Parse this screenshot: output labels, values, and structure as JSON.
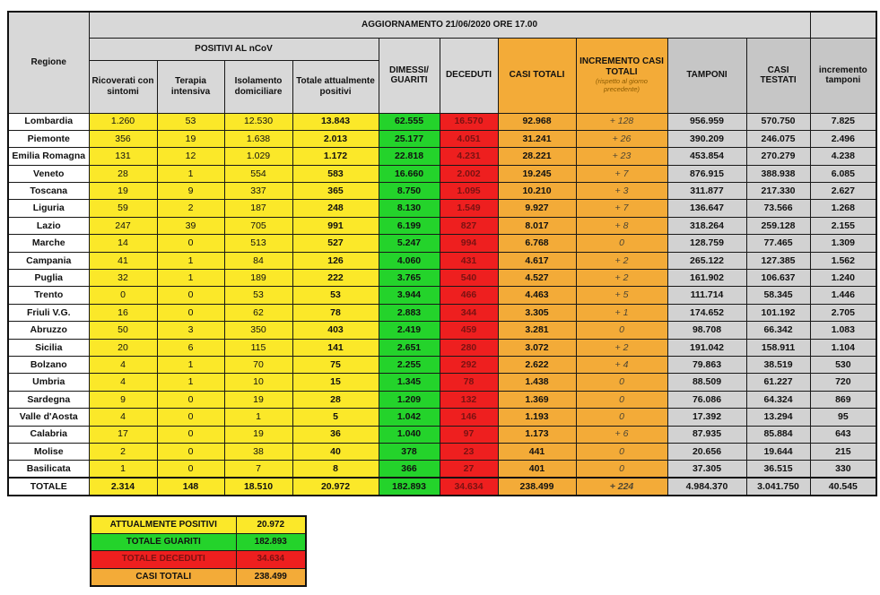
{
  "title": "AGGIORNAMENTO 21/06/2020 ORE 17.00",
  "header": {
    "regione": "Regione",
    "positivi_group": "POSITIVI AL nCoV",
    "ricoverati": "Ricoverati con sintomi",
    "terapia": "Terapia intensiva",
    "isolamento": "Isolamento domiciliare",
    "totale_positivi": "Totale attualmente positivi",
    "dimessi": "DIMESSI/ GUARITI",
    "deceduti": "DECEDUTI",
    "casi_totali": "CASI TOTALI",
    "incremento_casi": "INCREMENTO CASI TOTALI",
    "incremento_casi_note": "(rispetto al giorno precedente)",
    "tamponi": "TAMPONI",
    "casi_testati": "CASI TESTATI",
    "incremento_tamponi": "incremento tamponi"
  },
  "chart_data": {
    "type": "table",
    "columns": [
      "Regione",
      "Ricoverati con sintomi",
      "Terapia intensiva",
      "Isolamento domiciliare",
      "Totale attualmente positivi",
      "DIMESSI/GUARITI",
      "DECEDUTI",
      "CASI TOTALI",
      "INCREMENTO CASI TOTALI (rispetto al giorno precedente)",
      "TAMPONI",
      "CASI TESTATI",
      "incremento tamponi"
    ],
    "rows": [
      [
        "Lombardia",
        "1.260",
        "53",
        "12.530",
        "13.843",
        "62.555",
        "16.570",
        "92.968",
        "+ 128",
        "956.959",
        "570.750",
        "7.825"
      ],
      [
        "Piemonte",
        "356",
        "19",
        "1.638",
        "2.013",
        "25.177",
        "4.051",
        "31.241",
        "+ 26",
        "390.209",
        "246.075",
        "2.496"
      ],
      [
        "Emilia Romagna",
        "131",
        "12",
        "1.029",
        "1.172",
        "22.818",
        "4.231",
        "28.221",
        "+ 23",
        "453.854",
        "270.279",
        "4.238"
      ],
      [
        "Veneto",
        "28",
        "1",
        "554",
        "583",
        "16.660",
        "2.002",
        "19.245",
        "+ 7",
        "876.915",
        "388.938",
        "6.085"
      ],
      [
        "Toscana",
        "19",
        "9",
        "337",
        "365",
        "8.750",
        "1.095",
        "10.210",
        "+ 3",
        "311.877",
        "217.330",
        "2.627"
      ],
      [
        "Liguria",
        "59",
        "2",
        "187",
        "248",
        "8.130",
        "1.549",
        "9.927",
        "+ 7",
        "136.647",
        "73.566",
        "1.268"
      ],
      [
        "Lazio",
        "247",
        "39",
        "705",
        "991",
        "6.199",
        "827",
        "8.017",
        "+ 8",
        "318.264",
        "259.128",
        "2.155"
      ],
      [
        "Marche",
        "14",
        "0",
        "513",
        "527",
        "5.247",
        "994",
        "6.768",
        "0",
        "128.759",
        "77.465",
        "1.309"
      ],
      [
        "Campania",
        "41",
        "1",
        "84",
        "126",
        "4.060",
        "431",
        "4.617",
        "+ 2",
        "265.122",
        "127.385",
        "1.562"
      ],
      [
        "Puglia",
        "32",
        "1",
        "189",
        "222",
        "3.765",
        "540",
        "4.527",
        "+ 2",
        "161.902",
        "106.637",
        "1.240"
      ],
      [
        "Trento",
        "0",
        "0",
        "53",
        "53",
        "3.944",
        "466",
        "4.463",
        "+ 5",
        "111.714",
        "58.345",
        "1.446"
      ],
      [
        "Friuli V.G.",
        "16",
        "0",
        "62",
        "78",
        "2.883",
        "344",
        "3.305",
        "+ 1",
        "174.652",
        "101.192",
        "2.705"
      ],
      [
        "Abruzzo",
        "50",
        "3",
        "350",
        "403",
        "2.419",
        "459",
        "3.281",
        "0",
        "98.708",
        "66.342",
        "1.083"
      ],
      [
        "Sicilia",
        "20",
        "6",
        "115",
        "141",
        "2.651",
        "280",
        "3.072",
        "+ 2",
        "191.042",
        "158.911",
        "1.104"
      ],
      [
        "Bolzano",
        "4",
        "1",
        "70",
        "75",
        "2.255",
        "292",
        "2.622",
        "+ 4",
        "79.863",
        "38.519",
        "530"
      ],
      [
        "Umbria",
        "4",
        "1",
        "10",
        "15",
        "1.345",
        "78",
        "1.438",
        "0",
        "88.509",
        "61.227",
        "720"
      ],
      [
        "Sardegna",
        "9",
        "0",
        "19",
        "28",
        "1.209",
        "132",
        "1.369",
        "0",
        "76.086",
        "64.324",
        "869"
      ],
      [
        "Valle d'Aosta",
        "4",
        "0",
        "1",
        "5",
        "1.042",
        "146",
        "1.193",
        "0",
        "17.392",
        "13.294",
        "95"
      ],
      [
        "Calabria",
        "17",
        "0",
        "19",
        "36",
        "1.040",
        "97",
        "1.173",
        "+ 6",
        "87.935",
        "85.884",
        "643"
      ],
      [
        "Molise",
        "2",
        "0",
        "38",
        "40",
        "378",
        "23",
        "441",
        "0",
        "20.656",
        "19.644",
        "215"
      ],
      [
        "Basilicata",
        "1",
        "0",
        "7",
        "8",
        "366",
        "27",
        "401",
        "0",
        "37.305",
        "36.515",
        "330"
      ]
    ],
    "totale_row": [
      "TOTALE",
      "2.314",
      "148",
      "18.510",
      "20.972",
      "182.893",
      "34.634",
      "238.499",
      "+ 224",
      "4.984.370",
      "3.041.750",
      "40.545"
    ]
  },
  "summary": {
    "rows": [
      {
        "label": "ATTUALMENTE POSITIVI",
        "value": "20.972",
        "color": "yellow"
      },
      {
        "label": "TOTALE GUARITI",
        "value": "182.893",
        "color": "green"
      },
      {
        "label": "TOTALE DECEDUTI",
        "value": "34.634",
        "color": "red"
      },
      {
        "label": "CASI TOTALI",
        "value": "238.499",
        "color": "orange"
      }
    ]
  },
  "colors": {
    "yellow": "#fbe829",
    "green": "#24d32b",
    "red": "#ee1f1f",
    "orange": "#f3ab38",
    "header_gray": "#d8d8d8",
    "header_dark_gray": "#c6c6c6",
    "cell_gray": "#d2d2d2",
    "deceduti_text": "#7a1212"
  }
}
